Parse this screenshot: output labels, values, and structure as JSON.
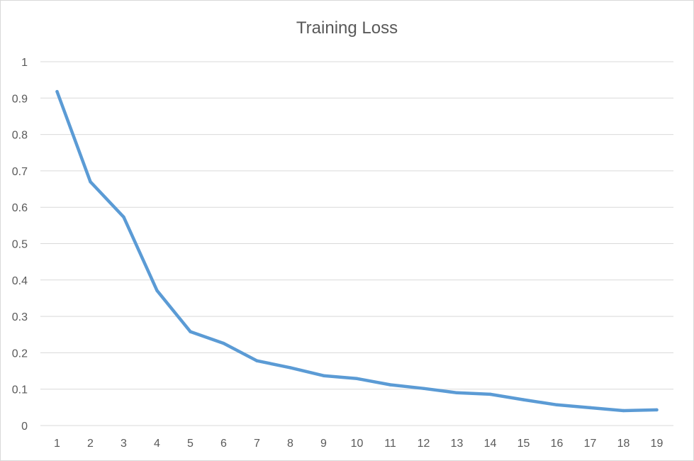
{
  "chart_data": {
    "type": "line",
    "title": "Training Loss",
    "xlabel": "",
    "ylabel": "",
    "categories": [
      "1",
      "2",
      "3",
      "4",
      "5",
      "6",
      "7",
      "8",
      "9",
      "10",
      "11",
      "12",
      "13",
      "14",
      "15",
      "16",
      "17",
      "18",
      "19"
    ],
    "series": [
      {
        "values": [
          0.918,
          0.67,
          0.573,
          0.371,
          0.258,
          0.226,
          0.178,
          0.159,
          0.137,
          0.129,
          0.112,
          0.102,
          0.09,
          0.086,
          0.071,
          0.057,
          0.049,
          0.041,
          0.043
        ],
        "color": "#5b9bd5"
      }
    ],
    "ylim": [
      0,
      1
    ],
    "yticks": [
      "0",
      "0.1",
      "0.2",
      "0.3",
      "0.4",
      "0.5",
      "0.6",
      "0.7",
      "0.8",
      "0.9",
      "1"
    ],
    "grid": true,
    "legend": "none"
  }
}
